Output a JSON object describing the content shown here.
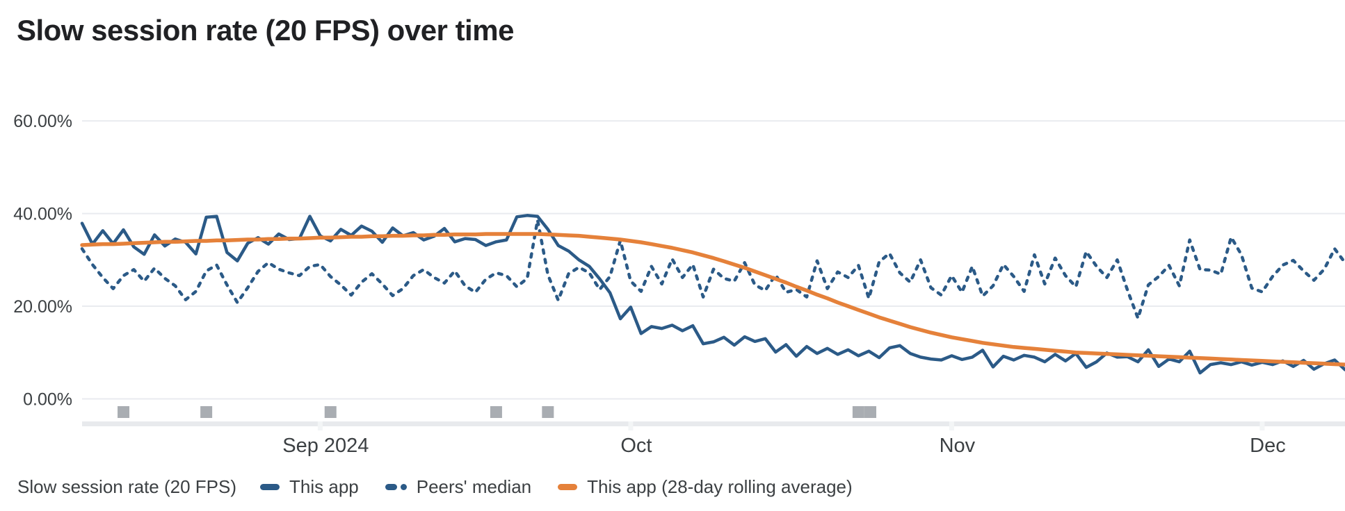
{
  "chart_data": {
    "type": "line",
    "title": "Slow session rate (20 FPS) over time",
    "ylim": [
      0,
      60
    ],
    "grid": true,
    "days_total": 122,
    "y_axis": {
      "ticks": [
        {
          "label": "0.00%",
          "value": 0
        },
        {
          "label": "20.00%",
          "value": 20
        },
        {
          "label": "40.00%",
          "value": 40
        },
        {
          "label": "60.00%",
          "value": 60
        }
      ]
    },
    "x_axis": {
      "ticks": [
        {
          "label": "Sep 2024",
          "day": 23
        },
        {
          "label": "Oct",
          "day": 53
        },
        {
          "label": "Nov",
          "day": 84
        },
        {
          "label": "Dec",
          "day": 114
        }
      ]
    },
    "series": [
      {
        "name": "This app",
        "style": "solid",
        "color": "#2b5a87",
        "values": [
          37.9,
          33.4,
          36.3,
          33.5,
          36.5,
          32.8,
          31.2,
          35.4,
          33.0,
          34.5,
          33.8,
          31.3,
          39.2,
          39.4,
          31.6,
          29.8,
          33.6,
          34.8,
          33.4,
          35.6,
          34.4,
          34.6,
          39.4,
          35.2,
          34.1,
          36.6,
          35.3,
          37.3,
          36.2,
          33.8,
          36.9,
          35.2,
          35.9,
          34.3,
          35.1,
          36.8,
          33.9,
          34.6,
          34.4,
          33.1,
          33.9,
          34.3,
          39.3,
          39.6,
          39.4,
          36.6,
          33.1,
          31.9,
          30.0,
          28.6,
          25.9,
          22.9,
          17.3,
          19.8,
          14.1,
          15.6,
          15.2,
          15.9,
          14.7,
          15.8,
          11.9,
          12.3,
          13.3,
          11.6,
          13.4,
          12.4,
          13.0,
          10.1,
          11.7,
          9.2,
          11.3,
          9.8,
          10.9,
          9.6,
          10.6,
          9.3,
          10.3,
          8.9,
          11.0,
          11.5,
          9.8,
          9.0,
          8.6,
          8.4,
          9.3,
          8.5,
          9.0,
          10.5,
          6.9,
          9.2,
          8.4,
          9.4,
          9.0,
          8.0,
          9.6,
          8.2,
          9.8,
          6.8,
          8.0,
          9.9,
          9.0,
          9.1,
          8.0,
          10.6,
          7.0,
          8.6,
          8.0,
          10.3,
          5.6,
          7.4,
          7.8,
          7.4,
          8.0,
          7.3,
          7.9,
          7.4,
          8.2,
          7.0,
          8.3,
          6.4,
          7.6,
          8.4,
          6.3
        ]
      },
      {
        "name": "Peers' median",
        "style": "dashed",
        "color": "#2b5a87",
        "values": [
          32.4,
          29.0,
          26.2,
          23.8,
          26.6,
          27.9,
          25.4,
          28.2,
          26.0,
          24.4,
          21.4,
          23.2,
          27.6,
          28.9,
          24.6,
          20.8,
          24.0,
          27.5,
          29.4,
          28.0,
          27.2,
          26.6,
          28.6,
          29.0,
          26.4,
          24.6,
          22.4,
          25.2,
          27.0,
          24.8,
          22.3,
          23.8,
          26.6,
          27.9,
          26.2,
          25.0,
          27.6,
          24.4,
          23.0,
          25.8,
          27.2,
          26.6,
          24.2,
          26.0,
          38.6,
          26.8,
          21.3,
          27.0,
          28.4,
          27.2,
          23.6,
          26.4,
          34.2,
          25.4,
          23.2,
          28.6,
          24.8,
          30.2,
          26.2,
          29.0,
          22.0,
          28.0,
          26.0,
          25.4,
          29.4,
          24.6,
          23.4,
          26.8,
          23.0,
          23.6,
          22.0,
          29.8,
          23.8,
          27.4,
          26.2,
          28.8,
          21.7,
          29.6,
          31.4,
          27.2,
          25.2,
          30.0,
          24.0,
          22.4,
          26.6,
          23.0,
          28.6,
          22.2,
          24.4,
          29.0,
          26.4,
          23.2,
          31.1,
          24.8,
          30.4,
          26.6,
          24.2,
          31.8,
          28.6,
          26.2,
          30.0,
          23.4,
          17.4,
          24.6,
          26.4,
          28.8,
          24.4,
          34.3,
          27.9,
          27.8,
          26.9,
          34.9,
          31.1,
          23.9,
          23.1,
          26.4,
          28.9,
          29.9,
          27.6,
          25.6,
          28.0,
          32.4,
          29.4
        ]
      },
      {
        "name": "This app (28-day rolling average)",
        "style": "solid",
        "color": "#e5813a",
        "values": [
          33.2,
          33.3,
          33.4,
          33.4,
          33.5,
          33.6,
          33.7,
          33.8,
          33.9,
          33.9,
          34.0,
          34.1,
          34.1,
          34.2,
          34.2,
          34.3,
          34.4,
          34.4,
          34.5,
          34.5,
          34.6,
          34.6,
          34.7,
          34.8,
          34.8,
          34.9,
          35.0,
          35.0,
          35.1,
          35.1,
          35.2,
          35.2,
          35.3,
          35.3,
          35.4,
          35.4,
          35.5,
          35.5,
          35.5,
          35.6,
          35.6,
          35.6,
          35.6,
          35.6,
          35.6,
          35.5,
          35.4,
          35.3,
          35.2,
          35.0,
          34.8,
          34.6,
          34.4,
          34.1,
          33.8,
          33.4,
          33.0,
          32.6,
          32.1,
          31.6,
          31.0,
          30.4,
          29.7,
          29.0,
          28.3,
          27.5,
          26.7,
          25.9,
          25.1,
          24.2,
          23.4,
          22.5,
          21.7,
          20.8,
          20.0,
          19.2,
          18.4,
          17.6,
          16.9,
          16.2,
          15.5,
          14.9,
          14.3,
          13.8,
          13.3,
          12.9,
          12.5,
          12.1,
          11.8,
          11.5,
          11.2,
          11.0,
          10.8,
          10.6,
          10.4,
          10.2,
          10.0,
          9.9,
          9.8,
          9.7,
          9.6,
          9.5,
          9.4,
          9.3,
          9.2,
          9.1,
          9.0,
          8.9,
          8.8,
          8.7,
          8.6,
          8.5,
          8.4,
          8.3,
          8.2,
          8.1,
          8.0,
          7.9,
          7.8,
          7.7,
          7.6,
          7.5,
          7.4
        ]
      }
    ],
    "release_markers": {
      "days": [
        4,
        12,
        24,
        40,
        45,
        75,
        76.15
      ],
      "color": "#a9adb2",
      "track_color": "#e8eaed"
    },
    "colors": {
      "grid": "#e9ebef",
      "axis_text": "#3c4043",
      "tick_notch": "#f3f5f6"
    }
  },
  "legend": {
    "axis_label": "Slow session rate (20 FPS)",
    "items": [
      {
        "label": "This app",
        "style": "solid",
        "color": "#2b5a87"
      },
      {
        "label": "Peers' median",
        "style": "dashed",
        "color": "#2b5a87"
      },
      {
        "label": "This app (28-day rolling average)",
        "style": "solid",
        "color": "#e5813a"
      }
    ]
  }
}
